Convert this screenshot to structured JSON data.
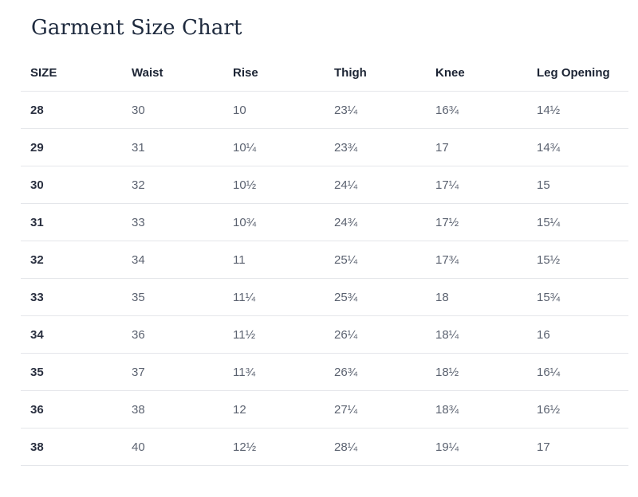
{
  "title": "Garment Size Chart",
  "columns": [
    "SIZE",
    "Waist",
    "Rise",
    "Thigh",
    "Knee",
    "Leg Opening"
  ],
  "rows": [
    [
      "28",
      "30",
      "10",
      "23¼",
      "16¾",
      "14½"
    ],
    [
      "29",
      "31",
      "10¼",
      "23¾",
      "17",
      "14¾"
    ],
    [
      "30",
      "32",
      "10½",
      "24¼",
      "17¼",
      "15"
    ],
    [
      "31",
      "33",
      "10¾",
      "24¾",
      "17½",
      "15¼"
    ],
    [
      "32",
      "34",
      "11",
      "25¼",
      "17¾",
      "15½"
    ],
    [
      "33",
      "35",
      "11¼",
      "25¾",
      "18",
      "15¾"
    ],
    [
      "34",
      "36",
      "11½",
      "26¼",
      "18¼",
      "16"
    ],
    [
      "35",
      "37",
      "11¾",
      "26¾",
      "18½",
      "16¼"
    ],
    [
      "36",
      "38",
      "12",
      "27¼",
      "18¾",
      "16½"
    ],
    [
      "38",
      "40",
      "12½",
      "28¼",
      "19¼",
      "17"
    ]
  ]
}
